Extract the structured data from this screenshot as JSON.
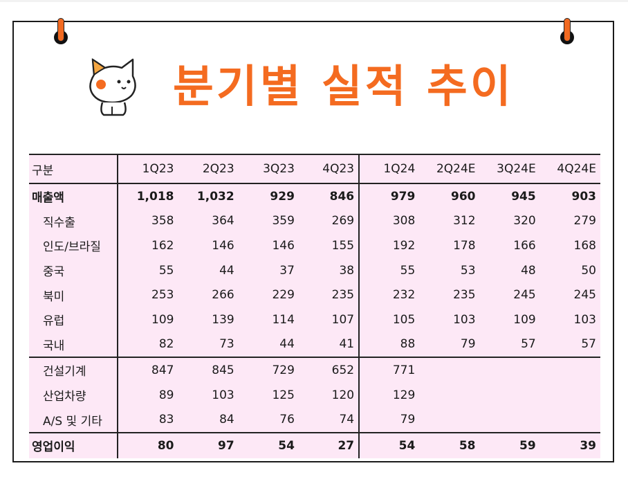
{
  "title": "분기별 실적 추이",
  "table": {
    "header": [
      "구분",
      "1Q23",
      "2Q23",
      "3Q23",
      "4Q23",
      "1Q24",
      "2Q24E",
      "3Q24E",
      "4Q24E"
    ],
    "rows": [
      {
        "label": "매출액",
        "values": [
          "1,018",
          "1,032",
          "929",
          "846",
          "979",
          "960",
          "945",
          "903"
        ]
      },
      {
        "label": "직수출",
        "values": [
          "358",
          "364",
          "359",
          "269",
          "308",
          "312",
          "320",
          "279"
        ]
      },
      {
        "label": "인도/브라질",
        "values": [
          "162",
          "146",
          "146",
          "155",
          "192",
          "178",
          "166",
          "168"
        ]
      },
      {
        "label": "중국",
        "values": [
          "55",
          "44",
          "37",
          "38",
          "55",
          "53",
          "48",
          "50"
        ]
      },
      {
        "label": "북미",
        "values": [
          "253",
          "266",
          "229",
          "235",
          "232",
          "235",
          "245",
          "245"
        ]
      },
      {
        "label": "유럽",
        "values": [
          "109",
          "139",
          "114",
          "107",
          "105",
          "103",
          "109",
          "103"
        ]
      },
      {
        "label": "국내",
        "values": [
          "82",
          "73",
          "44",
          "41",
          "88",
          "79",
          "57",
          "57"
        ]
      },
      {
        "label": "건설기계",
        "values": [
          "847",
          "845",
          "729",
          "652",
          "771",
          "",
          "",
          ""
        ]
      },
      {
        "label": "산업차량",
        "values": [
          "89",
          "103",
          "125",
          "120",
          "129",
          "",
          "",
          ""
        ]
      },
      {
        "label": "A/S 및 기타",
        "values": [
          "83",
          "84",
          "76",
          "74",
          "79",
          "",
          "",
          ""
        ]
      },
      {
        "label": "영업이익",
        "values": [
          "80",
          "97",
          "54",
          "27",
          "54",
          "58",
          "59",
          "39"
        ]
      }
    ]
  },
  "colors": {
    "accent": "#f46b20",
    "table_bg": "#fde8f6",
    "border": "#222222"
  }
}
